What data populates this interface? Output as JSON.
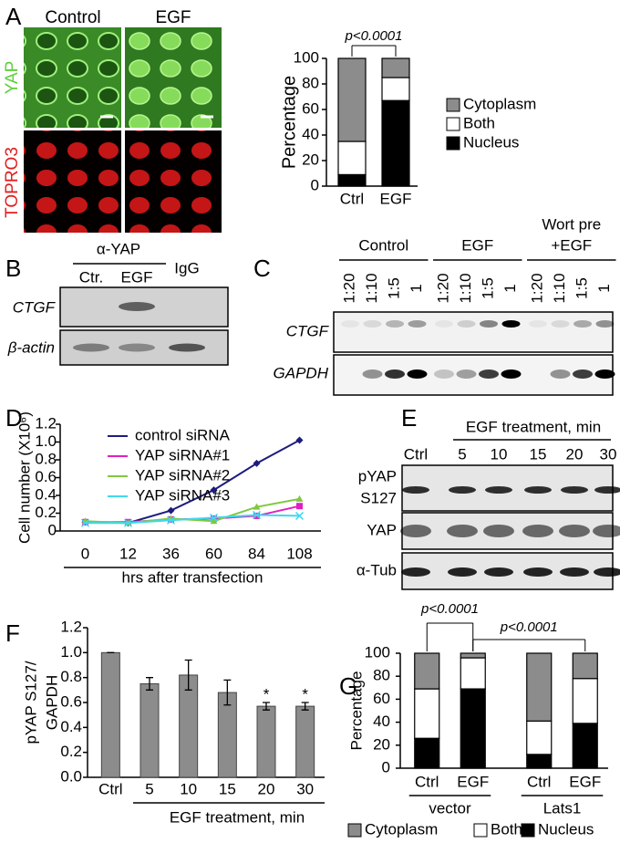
{
  "panel_letters": [
    "A",
    "B",
    "C",
    "D",
    "E",
    "F",
    "G"
  ],
  "images": {
    "columns": [
      "Control",
      "EGF"
    ],
    "rows": [
      "YAP",
      "TOPRO3"
    ]
  },
  "gel_b": {
    "antibody": "α-YAP",
    "lanes": [
      "Ctr.",
      "EGF",
      "IgG"
    ],
    "rows": [
      "CTGF",
      "β-actin"
    ]
  },
  "gel_c": {
    "groups": [
      [
        "Control"
      ],
      [
        "EGF"
      ],
      [
        "Wort pre",
        "+EGF"
      ]
    ],
    "lanes": [
      "1:20",
      "1:10",
      "1:5",
      "1"
    ],
    "rows": [
      "CTGF",
      "GAPDH"
    ]
  },
  "gel_e": {
    "header": "EGF treatment, min",
    "lanes": [
      "Ctrl",
      "5",
      "10",
      "15",
      "20",
      "30"
    ],
    "rows": [
      [
        "pYAP",
        "S127"
      ],
      [
        "YAP"
      ],
      [
        "α-Tub"
      ]
    ]
  },
  "chart_data": [
    {
      "type": "stacked-bar",
      "ylabel": "Percentage",
      "categories": [
        "Ctrl",
        "EGF"
      ],
      "series": [
        {
          "name": "Nucleus",
          "color": "#000000",
          "values": [
            9,
            67
          ]
        },
        {
          "name": "Both",
          "color": "#ffffff",
          "values": [
            26,
            18
          ]
        },
        {
          "name": "Cytoplasm",
          "color": "#8c8c8c",
          "values": [
            65,
            15
          ]
        }
      ],
      "ylim": [
        0,
        100
      ],
      "yticks": [
        0,
        20,
        40,
        60,
        80,
        100
      ],
      "annotations": [
        "p<0.0001"
      ]
    },
    {
      "type": "line",
      "ylabel": "Cell number (X10⁶)",
      "xlabel": "hrs after transfection",
      "categories": [
        "0",
        "12",
        "36",
        "60",
        "84",
        "108"
      ],
      "series": [
        {
          "name": "control siRNA",
          "color": "#1c1c80",
          "values": [
            0.1,
            0.09,
            0.23,
            0.46,
            0.76,
            1.02
          ]
        },
        {
          "name": "YAP siRNA#1",
          "color": "#e020c0",
          "values": [
            0.1,
            0.1,
            0.13,
            0.14,
            0.17,
            0.28
          ]
        },
        {
          "name": "YAP siRNA#2",
          "color": "#80c840",
          "values": [
            0.11,
            0.09,
            0.14,
            0.11,
            0.27,
            0.36
          ]
        },
        {
          "name": "YAP siRNA#3",
          "color": "#40d8f0",
          "values": [
            0.09,
            0.09,
            0.12,
            0.15,
            0.18,
            0.17
          ]
        }
      ],
      "ylim": [
        0,
        1.2
      ],
      "yticks": [
        0,
        0.2,
        0.4,
        0.6,
        0.8,
        {
          "value": 1,
          "label": "1.0"
        },
        1.2
      ]
    },
    {
      "type": "bar",
      "ylabel": [
        "pYAP S127/",
        "GAPDH"
      ],
      "xlabel": "EGF treatment, min",
      "categories": [
        "Ctrl",
        "5",
        "10",
        "15",
        "20",
        "30"
      ],
      "color": "#8c8c8c",
      "values": [
        1.0,
        0.75,
        0.82,
        0.68,
        0.57,
        0.57
      ],
      "errors": [
        0,
        0.05,
        0.12,
        0.1,
        0.03,
        0.03
      ],
      "significance": [
        null,
        null,
        null,
        null,
        "*",
        "*"
      ],
      "ylim": [
        0,
        1.2
      ],
      "yticks": [
        {
          "value": 0,
          "label": "0.0"
        },
        0.2,
        0.4,
        0.6,
        0.8,
        {
          "value": 1,
          "label": "1.0"
        },
        1.2
      ]
    },
    {
      "type": "stacked-bar",
      "ylabel": "Percentage",
      "categories": [
        "Ctrl",
        "EGF",
        "Ctrl",
        "EGF"
      ],
      "groups": [
        "vector",
        "Lats1"
      ],
      "series": [
        {
          "name": "Nucleus",
          "color": "#000000",
          "values": [
            26,
            69,
            12,
            39
          ]
        },
        {
          "name": "Both",
          "color": "#ffffff",
          "values": [
            43,
            27,
            29,
            39
          ]
        },
        {
          "name": "Cytoplasm",
          "color": "#8c8c8c",
          "values": [
            31,
            4,
            59,
            22
          ]
        }
      ],
      "ylim": [
        0,
        100
      ],
      "yticks": [
        0,
        20,
        40,
        60,
        80,
        100
      ],
      "annotations": [
        "p<0.0001",
        "p<0.0001"
      ]
    }
  ]
}
